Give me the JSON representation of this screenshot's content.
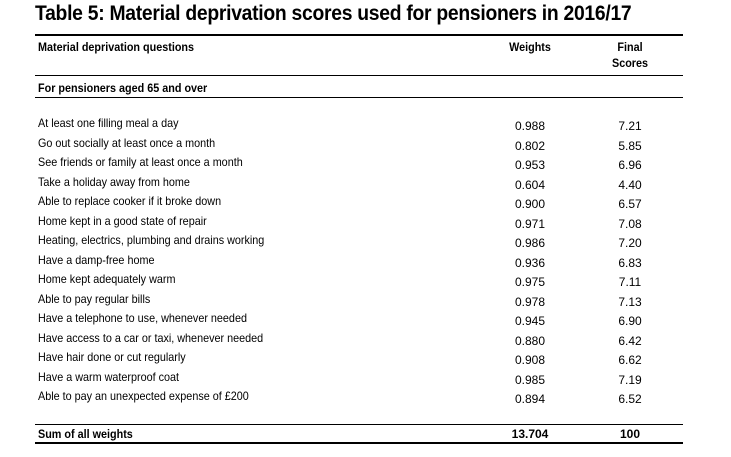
{
  "title": "Table 5: Material deprivation scores used for pensioners in 2016/17",
  "headers": {
    "question": "Material deprivation questions",
    "weights": "Weights",
    "final_line1": "Final",
    "final_line2": "Scores"
  },
  "section": "For pensioners aged 65 and over",
  "rows": [
    {
      "question": "At least one filling meal a day",
      "weight": "0.988",
      "score": "7.21"
    },
    {
      "question": "Go out socially at least once a month",
      "weight": "0.802",
      "score": "5.85"
    },
    {
      "question": "See friends or family at least once a month",
      "weight": "0.953",
      "score": "6.96"
    },
    {
      "question": "Take a holiday away from home",
      "weight": "0.604",
      "score": "4.40"
    },
    {
      "question": "Able to replace cooker if it broke down",
      "weight": "0.900",
      "score": "6.57"
    },
    {
      "question": "Home kept in a good state of repair",
      "weight": "0.971",
      "score": "7.08"
    },
    {
      "question": "Heating, electrics, plumbing and drains working",
      "weight": "0.986",
      "score": "7.20"
    },
    {
      "question": "Have a damp-free home",
      "weight": "0.936",
      "score": "6.83"
    },
    {
      "question": "Home kept adequately warm",
      "weight": "0.975",
      "score": "7.11"
    },
    {
      "question": "Able to pay regular bills",
      "weight": "0.978",
      "score": "7.13"
    },
    {
      "question": "Have a telephone to use, whenever needed",
      "weight": "0.945",
      "score": "6.90"
    },
    {
      "question": "Have access to a car or taxi, whenever needed",
      "weight": "0.880",
      "score": "6.42"
    },
    {
      "question": "Have hair done or cut regularly",
      "weight": "0.908",
      "score": "6.62"
    },
    {
      "question": "Have a warm waterproof coat",
      "weight": "0.985",
      "score": "7.19"
    },
    {
      "question": "Able to pay an unexpected expense of £200",
      "weight": "0.894",
      "score": "6.52"
    }
  ],
  "total": {
    "label": "Sum of all weights",
    "weight": "13.704",
    "score": "100"
  }
}
